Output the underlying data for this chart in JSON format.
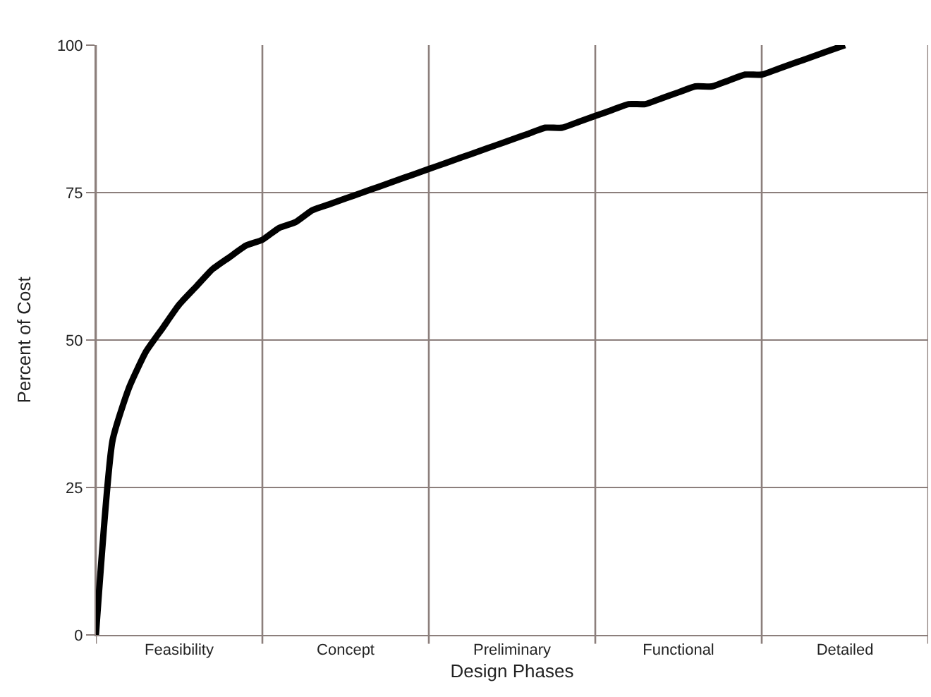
{
  "chart_data": {
    "type": "line",
    "xlabel": "Design Phases",
    "ylabel": "Percent of Cost",
    "categories": [
      null,
      null,
      null,
      null,
      null,
      "Feasibility",
      null,
      null,
      null,
      null,
      null,
      null,
      null,
      null,
      null,
      "Concept",
      null,
      null,
      null,
      null,
      null,
      null,
      null,
      null,
      null,
      "Preliminary",
      null,
      null,
      null,
      null,
      null,
      null,
      null,
      null,
      null,
      "Functional",
      null,
      null,
      null,
      null,
      null,
      null,
      null,
      null,
      null,
      "Detailed",
      null,
      null,
      null,
      null,
      null
    ],
    "series": [
      {
        "color": "#000000",
        "values": [
          0,
          33,
          42,
          48,
          52,
          56,
          59,
          62,
          64,
          66,
          67,
          69,
          70,
          72,
          73,
          74,
          75,
          76,
          77,
          78,
          79,
          80,
          81,
          82,
          83,
          84,
          85,
          86,
          86,
          87,
          88,
          89,
          90,
          90,
          91,
          92,
          93,
          93,
          94,
          95,
          95,
          96,
          97,
          98,
          99,
          100,
          null,
          null,
          null,
          null,
          null
        ]
      }
    ],
    "ylim": [
      0,
      100
    ],
    "yticks": [
      0,
      25,
      50,
      75,
      100
    ],
    "grid": true,
    "legend": false,
    "marker": "none",
    "line_style": "solid"
  }
}
